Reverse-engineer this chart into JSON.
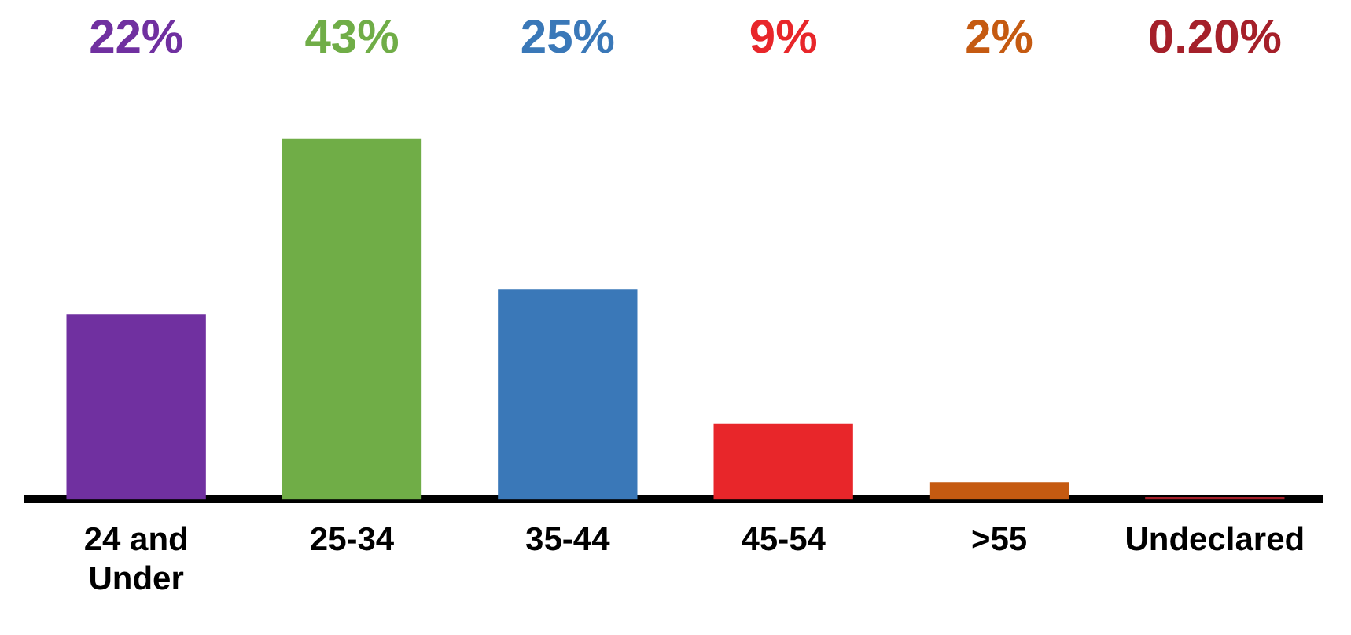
{
  "chart_data": {
    "type": "bar",
    "categories": [
      "24 and Under",
      "25-34",
      "35-44",
      "45-54",
      ">55",
      "Undeclared"
    ],
    "values": [
      22,
      43,
      25,
      9,
      2,
      0.2
    ],
    "colors": [
      "#7030a0",
      "#70ad47",
      "#3a78b8",
      "#e8262a",
      "#c55a11",
      "#a5202a"
    ],
    "value_labels": [
      "22%",
      "43%",
      "25%",
      "9%",
      "2%",
      "0.20%"
    ],
    "grid": false,
    "legend": false,
    "tick_labels": "x"
  }
}
